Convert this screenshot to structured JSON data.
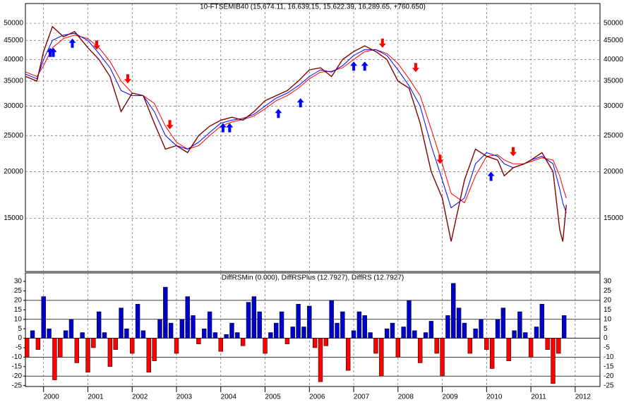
{
  "chart_data": [
    {
      "type": "line",
      "title": "10-FTSEMIB40 (15,674.11, 16,639.15, 15,622.39, 16,289.65, +760.650)",
      "log": true,
      "grid": true,
      "xlim": [
        1999.59,
        2012.56
      ],
      "xticks": [
        2000,
        2001,
        2002,
        2003,
        2004,
        2005,
        2006,
        2007,
        2008,
        2009,
        2010,
        2011,
        2012
      ],
      "ylim": [
        10800,
        56500
      ],
      "yticks": [
        {
          "value": 15000,
          "label": "15000"
        },
        {
          "value": 20000,
          "label": "20000"
        },
        {
          "value": 25000,
          "label": "25000"
        },
        {
          "value": 30000,
          "label": "30000"
        },
        {
          "value": 35000,
          "label": "35000"
        },
        {
          "value": 40000,
          "label": "40000"
        },
        {
          "value": 45000,
          "label": "45000"
        },
        {
          "value": 50000,
          "label": "50000"
        }
      ],
      "x": [
        1999.6,
        1999.85,
        2000.0,
        2000.2,
        2000.45,
        2000.7,
        2001.0,
        2001.25,
        2001.5,
        2001.75,
        2002.0,
        2002.25,
        2002.5,
        2002.75,
        2003.0,
        2003.25,
        2003.5,
        2003.75,
        2004.0,
        2004.25,
        2004.5,
        2004.75,
        2005.0,
        2005.25,
        2005.5,
        2005.75,
        2006.0,
        2006.25,
        2006.5,
        2006.75,
        2007.0,
        2007.25,
        2007.5,
        2007.75,
        2008.0,
        2008.25,
        2008.5,
        2008.75,
        2009.0,
        2009.2,
        2009.5,
        2009.75,
        2010.0,
        2010.25,
        2010.4,
        2010.6,
        2010.85,
        2011.0,
        2011.25,
        2011.5,
        2011.65,
        2011.72,
        2011.8
      ],
      "series": [
        {
          "color": "#800000",
          "values": [
            36000,
            35000,
            42000,
            49000,
            46000,
            47500,
            43000,
            40000,
            36000,
            29000,
            32500,
            32000,
            27000,
            23000,
            23500,
            22500,
            25000,
            26500,
            27500,
            28000,
            27500,
            29000,
            31000,
            32000,
            33000,
            35000,
            37500,
            38000,
            36000,
            40000,
            42000,
            43500,
            42000,
            40000,
            35000,
            33500,
            27000,
            20000,
            17000,
            13000,
            19000,
            23000,
            22000,
            21500,
            19500,
            20500,
            21000,
            21500,
            22500,
            20000,
            14000,
            13000,
            16300
          ]
        },
        {
          "color": "#0000ff",
          "values": [
            36500,
            35500,
            40000,
            45000,
            46500,
            47000,
            45000,
            41500,
            38000,
            33000,
            32000,
            32000,
            29000,
            25000,
            23500,
            23000,
            24000,
            25500,
            27000,
            27500,
            27800,
            28500,
            30000,
            31500,
            32500,
            34000,
            36000,
            37500,
            37000,
            38500,
            41000,
            42500,
            42500,
            41000,
            37500,
            34000,
            30000,
            23500,
            19000,
            16000,
            17000,
            21000,
            22500,
            22000,
            21000,
            20500,
            21000,
            21500,
            22000,
            21000,
            18000,
            16500,
            15500
          ]
        },
        {
          "color": "#ff0000",
          "values": [
            37000,
            36000,
            38500,
            43000,
            45500,
            46500,
            45500,
            43000,
            39500,
            35000,
            32500,
            32000,
            30500,
            26500,
            24000,
            23000,
            23500,
            25000,
            26500,
            27200,
            27600,
            28200,
            29500,
            31000,
            32000,
            33500,
            35500,
            37000,
            37200,
            38000,
            40000,
            42000,
            42500,
            41500,
            39000,
            35500,
            32000,
            26000,
            21000,
            17500,
            16500,
            19500,
            22000,
            22200,
            21500,
            21000,
            21000,
            21300,
            21800,
            21500,
            19500,
            18200,
            17000
          ]
        }
      ],
      "markers": {
        "up": {
          "color": "#0000ff",
          "x": [
            2000.15,
            2000.22,
            2000.65,
            2004.05,
            2004.2,
            2005.3,
            2005.8,
            2007.0,
            2007.25,
            2010.1
          ],
          "y": [
            43000,
            43000,
            45500,
            27000,
            27000,
            29500,
            31500,
            39500,
            39500,
            20000
          ]
        },
        "down": {
          "color": "#ff0000",
          "x": [
            2001.2,
            2001.9,
            2002.85,
            2007.65,
            2008.4,
            2008.95,
            2010.6
          ],
          "y": [
            42500,
            34500,
            26000,
            43000,
            37000,
            21000,
            22000
          ]
        }
      }
    },
    {
      "type": "bar",
      "title": "DiffRSMin (0.000), DiffRSPlus (12.7927), DiffRS (12.7927)",
      "xlim": [
        1999.59,
        2012.56
      ],
      "ylim": [
        -25.5,
        34.5
      ],
      "yticks": [
        -25,
        -20,
        -15,
        -10,
        -5,
        0,
        5,
        10,
        15,
        20,
        25,
        30
      ],
      "gridlines": [
        -20,
        -10,
        0,
        10,
        20
      ],
      "positive_color": "#0000cc",
      "negative_color": "#ff0000",
      "x": [
        1999.625,
        1999.75,
        1999.875,
        2000.0,
        2000.125,
        2000.25,
        2000.375,
        2000.5,
        2000.625,
        2000.75,
        2000.875,
        2001.0,
        2001.125,
        2001.25,
        2001.375,
        2001.5,
        2001.625,
        2001.75,
        2001.875,
        2002.0,
        2002.125,
        2002.25,
        2002.375,
        2002.5,
        2002.625,
        2002.75,
        2002.875,
        2003.0,
        2003.125,
        2003.25,
        2003.375,
        2003.5,
        2003.625,
        2003.75,
        2003.875,
        2004.0,
        2004.125,
        2004.25,
        2004.375,
        2004.5,
        2004.625,
        2004.75,
        2004.875,
        2005.0,
        2005.125,
        2005.25,
        2005.375,
        2005.5,
        2005.625,
        2005.75,
        2005.875,
        2006.0,
        2006.125,
        2006.25,
        2006.375,
        2006.5,
        2006.625,
        2006.75,
        2006.875,
        2007.0,
        2007.125,
        2007.25,
        2007.375,
        2007.5,
        2007.625,
        2007.75,
        2007.875,
        2008.0,
        2008.125,
        2008.25,
        2008.375,
        2008.5,
        2008.625,
        2008.75,
        2008.875,
        2009.0,
        2009.125,
        2009.25,
        2009.375,
        2009.5,
        2009.625,
        2009.75,
        2009.875,
        2010.0,
        2010.125,
        2010.25,
        2010.375,
        2010.5,
        2010.625,
        2010.75,
        2010.875,
        2011.0,
        2011.125,
        2011.25,
        2011.375,
        2011.5,
        2011.625,
        2011.75
      ],
      "values": [
        -10,
        4,
        -6,
        22,
        5,
        -22,
        -10,
        4,
        10,
        -13,
        3,
        -18,
        -5,
        14,
        3,
        -15,
        -6,
        16,
        5,
        -8,
        18,
        4,
        -18,
        -12,
        10,
        27,
        8,
        -8,
        10,
        22,
        12,
        -3,
        5,
        14,
        3,
        -7,
        2,
        8,
        3,
        -4,
        19,
        22,
        14,
        -8,
        3,
        8,
        14,
        -3,
        6,
        18,
        6,
        17,
        -5,
        -23,
        -4,
        20,
        8,
        14,
        -17,
        4,
        14,
        12,
        3,
        -8,
        -20,
        5,
        8,
        -10,
        6,
        20,
        4,
        -13,
        3,
        9,
        -8,
        -20,
        12,
        29,
        16,
        8,
        -8,
        5,
        10,
        -6,
        -16,
        10,
        16,
        -12,
        4,
        14,
        3,
        -10,
        6,
        18,
        -6,
        -24,
        -8,
        12
      ]
    }
  ]
}
